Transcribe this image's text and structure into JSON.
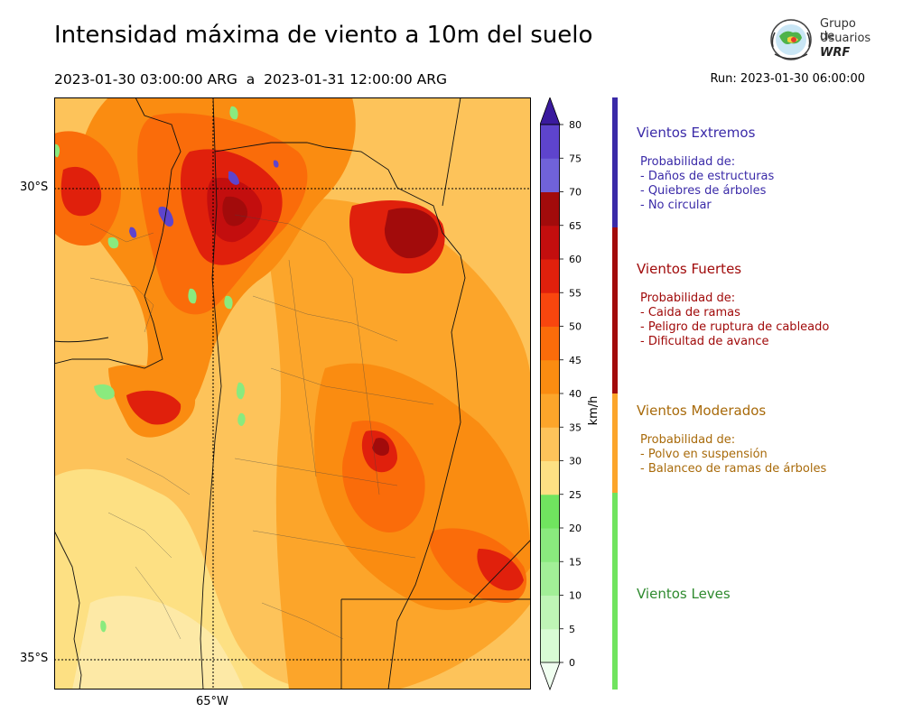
{
  "title": "Intensidad máxima de viento a 10m del suelo",
  "period": "2023-01-30 03:00:00 ARG  a  2023-01-31 12:00:00 ARG",
  "run": "Run: 2023-01-30 06:00:00",
  "logo": {
    "line1": "Grupo de",
    "line2": "Usuarios",
    "line3": "WRF"
  },
  "map": {
    "lat_labels": [
      "30°S",
      "35°S"
    ],
    "lon_labels": [
      "65°W"
    ]
  },
  "colorbar": {
    "unit": "km/h",
    "ticks": [
      "0",
      "5",
      "10",
      "15",
      "20",
      "25",
      "30",
      "35",
      "40",
      "45",
      "50",
      "55",
      "60",
      "65",
      "70",
      "75",
      "80"
    ],
    "colors": [
      "#f0fff0",
      "#d8fbd4",
      "#bff5b6",
      "#a2ef97",
      "#8aea7e",
      "#70e45f",
      "#fde083",
      "#fdc35a",
      "#fca52a",
      "#fa8c11",
      "#fa6c0a",
      "#f8460e",
      "#e0200c",
      "#c30e0e",
      "#a20b0b",
      "#7062d9",
      "#5e44cd",
      "#4e28c0"
    ],
    "over_color": "#3a1a9e"
  },
  "legend": [
    {
      "title": "Vientos Extremos",
      "color": "#3a2aa8",
      "bar": "#3a2aa8",
      "lines": [
        "Probabilidad de:",
        "- Daños de estructuras",
        "- Quiebres de árboles",
        "- No circular"
      ]
    },
    {
      "title": "Vientos Fuertes",
      "color": "#a00a0a",
      "bar": "#a20b0b",
      "lines": [
        "Probabilidad de:",
        "- Caida de ramas",
        "- Peligro de ruptura de cableado",
        "- Dificultad de avance"
      ]
    },
    {
      "title": "Vientos Moderados",
      "color": "#a86a0a",
      "bar": "#fca52a",
      "lines": [
        "Probabilidad de:",
        "- Polvo en suspensión",
        "- Balanceo de ramas de árboles"
      ]
    },
    {
      "title": "Vientos Leves",
      "color": "#2e8a2e",
      "bar": "#70e45f",
      "lines": []
    }
  ]
}
